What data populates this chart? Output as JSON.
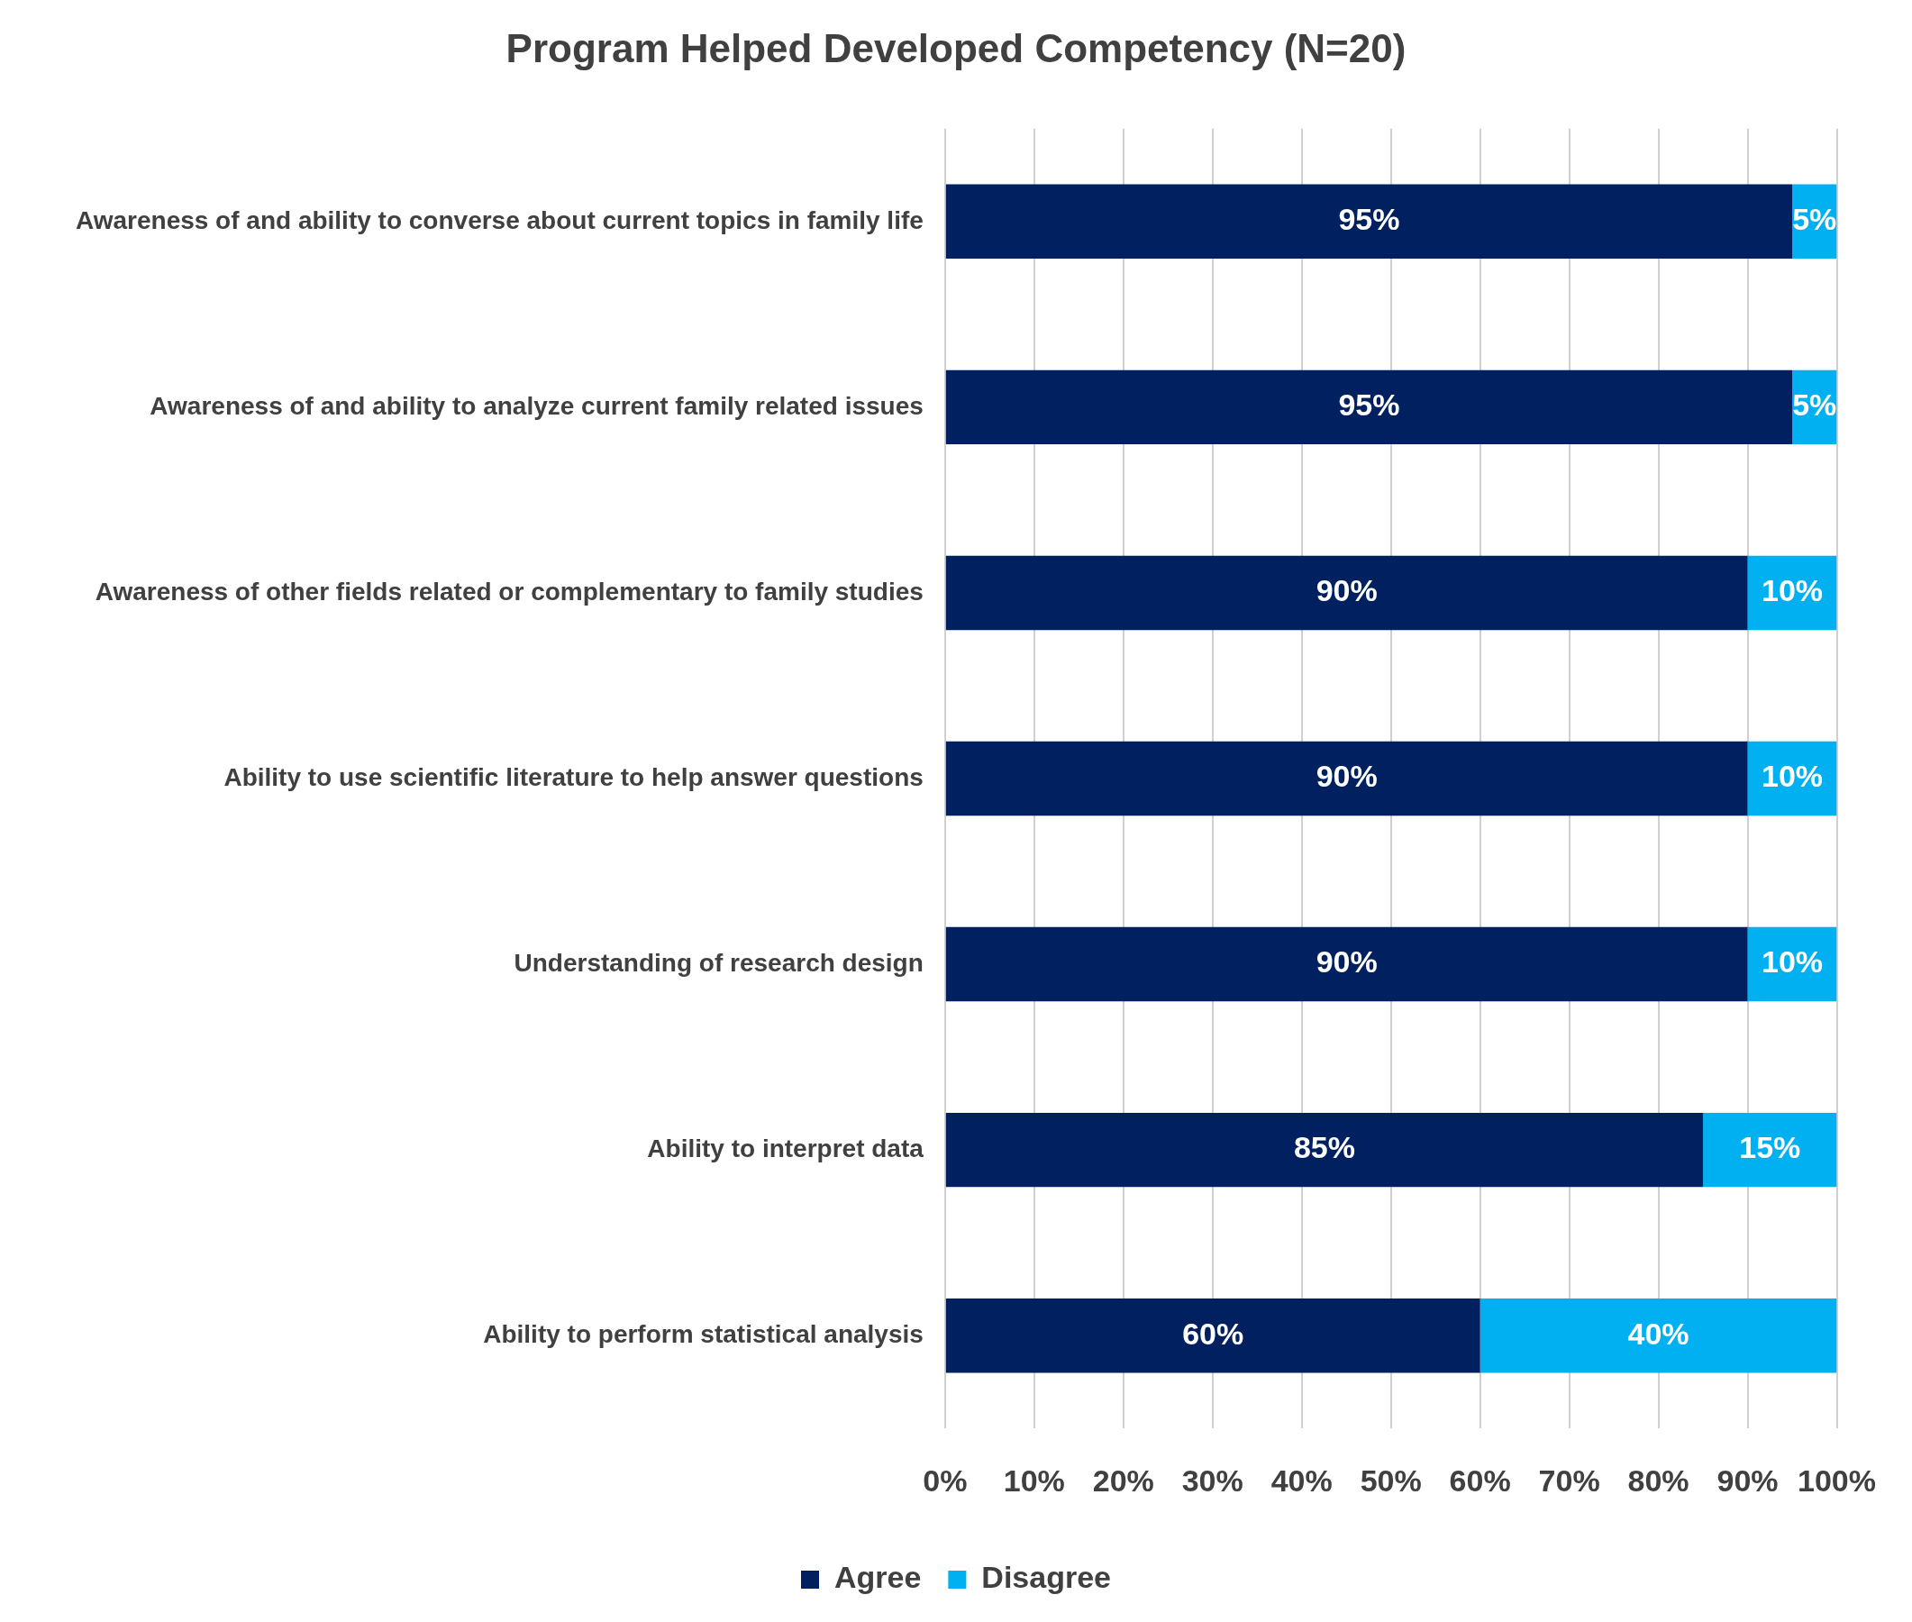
{
  "chart_data": {
    "type": "bar",
    "orientation": "horizontal",
    "stacked": true,
    "title": "Program Helped Developed Competency (N=20)",
    "categories": [
      "Awareness of and ability to converse about current topics in family life",
      "Awareness of and ability to analyze current family related issues",
      "Awareness of other fields related or complementary to family studies",
      "Ability to use scientific literature to help answer questions",
      "Understanding of research design",
      "Ability to interpret data",
      "Ability to perform statistical analysis"
    ],
    "series": [
      {
        "name": "Agree",
        "color": "#002060",
        "values": [
          95,
          95,
          90,
          90,
          90,
          85,
          60
        ],
        "value_labels": [
          "95%",
          "95%",
          "90%",
          "90%",
          "90%",
          "85%",
          "60%"
        ]
      },
      {
        "name": "Disagree",
        "color": "#00b0f0",
        "values": [
          5,
          5,
          10,
          10,
          10,
          15,
          40
        ],
        "value_labels": [
          "5%",
          "5%",
          "10%",
          "10%",
          "10%",
          "15%",
          "40%"
        ]
      }
    ],
    "xlim": [
      0,
      100
    ],
    "xticks": [
      {
        "value": 0,
        "label": "0%"
      },
      {
        "value": 10,
        "label": "10%"
      },
      {
        "value": 20,
        "label": "20%"
      },
      {
        "value": 30,
        "label": "30%"
      },
      {
        "value": 40,
        "label": "40%"
      },
      {
        "value": 50,
        "label": "50%"
      },
      {
        "value": 60,
        "label": "60%"
      },
      {
        "value": 70,
        "label": "70%"
      },
      {
        "value": 80,
        "label": "80%"
      },
      {
        "value": 90,
        "label": "90%"
      },
      {
        "value": 100,
        "label": "100%"
      }
    ],
    "grid": "x",
    "legend": "bottom"
  }
}
